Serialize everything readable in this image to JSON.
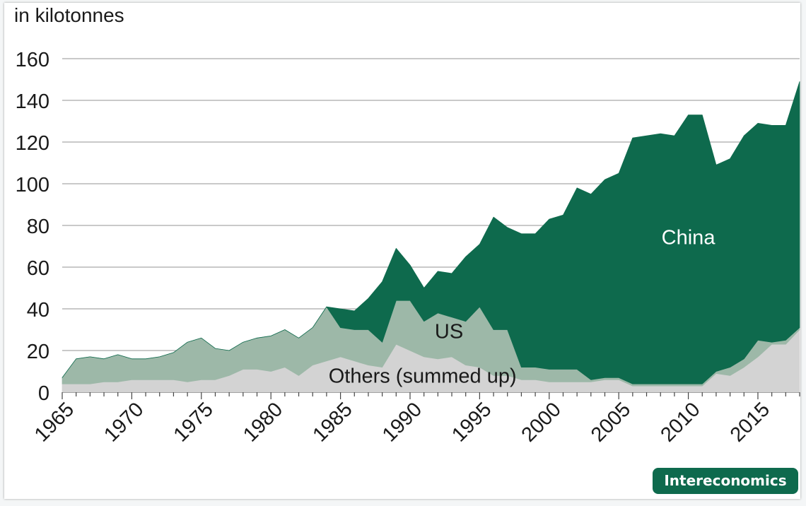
{
  "chart_data": {
    "type": "area",
    "stacked": true,
    "ylabel": "in kilotonnes",
    "ylim": [
      0,
      160
    ],
    "yticks": [
      "0",
      "20",
      "40",
      "60",
      "80",
      "100",
      "120",
      "140",
      "160"
    ],
    "xlim": [
      1965,
      2018
    ],
    "xticks": [
      "1965",
      "1970",
      "1975",
      "1980",
      "1985",
      "1990",
      "1995",
      "2000",
      "2005",
      "2010",
      "2015"
    ],
    "grid": true,
    "x": [
      1965,
      1966,
      1967,
      1968,
      1969,
      1970,
      1971,
      1972,
      1973,
      1974,
      1975,
      1976,
      1977,
      1978,
      1979,
      1980,
      1981,
      1982,
      1983,
      1984,
      1985,
      1986,
      1987,
      1988,
      1989,
      1990,
      1991,
      1992,
      1993,
      1994,
      1995,
      1996,
      1997,
      1998,
      1999,
      2000,
      2001,
      2002,
      2003,
      2004,
      2005,
      2006,
      2007,
      2008,
      2009,
      2010,
      2011,
      2012,
      2013,
      2014,
      2015,
      2016,
      2017,
      2018
    ],
    "series": [
      {
        "name": "Others (summed up)",
        "color": "#d3d3d3",
        "values": [
          4,
          4,
          4,
          5,
          5,
          6,
          6,
          6,
          6,
          5,
          6,
          6,
          8,
          11,
          11,
          10,
          12,
          8,
          13,
          15,
          17,
          15,
          13,
          12,
          23,
          20,
          17,
          16,
          17,
          13,
          12,
          8,
          8,
          6,
          6,
          5,
          5,
          5,
          5,
          6,
          6,
          3,
          3,
          3,
          3,
          3,
          3,
          9,
          8,
          12,
          17,
          23,
          23,
          30
        ]
      },
      {
        "name": "US",
        "color": "#9db8a8",
        "values": [
          3,
          12,
          13,
          11,
          13,
          10,
          10,
          11,
          13,
          19,
          20,
          15,
          12,
          13,
          15,
          17,
          18,
          18,
          18,
          26,
          14,
          15,
          17,
          12,
          21,
          24,
          17,
          22,
          19,
          21,
          29,
          22,
          22,
          6,
          6,
          6,
          6,
          6,
          1,
          1,
          1,
          1,
          1,
          1,
          1,
          1,
          1,
          1,
          4,
          4,
          8,
          1,
          2,
          1
        ]
      },
      {
        "name": "China",
        "color": "#0e6a4d",
        "values": [
          0,
          0,
          0,
          0,
          0,
          0,
          0,
          0,
          0,
          0,
          0,
          0,
          0,
          0,
          0,
          0,
          0,
          0,
          0,
          0,
          9,
          9,
          15,
          29,
          25,
          17,
          16,
          20,
          21,
          31,
          30,
          54,
          49,
          64,
          64,
          72,
          74,
          87,
          89,
          95,
          98,
          118,
          119,
          120,
          119,
          129,
          129,
          99,
          100,
          107,
          104,
          104,
          103,
          118
        ]
      }
    ],
    "annotations": [
      "China",
      "US",
      "Others (summed up)"
    ]
  },
  "branding": {
    "badge": "Intereconomics",
    "accent": "#0e6a4d"
  }
}
